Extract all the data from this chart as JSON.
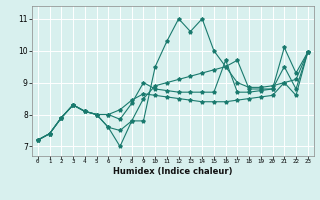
{
  "title": "",
  "xlabel": "Humidex (Indice chaleur)",
  "xlim": [
    -0.5,
    23.5
  ],
  "ylim": [
    6.7,
    11.4
  ],
  "xticks": [
    0,
    1,
    2,
    3,
    4,
    5,
    6,
    7,
    8,
    9,
    10,
    11,
    12,
    13,
    14,
    15,
    16,
    17,
    18,
    19,
    20,
    21,
    22,
    23
  ],
  "yticks": [
    7,
    8,
    9,
    10,
    11
  ],
  "bg_color": "#d8f0ee",
  "line_color": "#1a7a6e",
  "grid_color": "#ffffff",
  "series": [
    [
      7.2,
      7.4,
      7.9,
      8.3,
      8.1,
      8.0,
      7.6,
      7.0,
      7.8,
      7.8,
      9.5,
      10.3,
      11.0,
      10.6,
      11.0,
      10.0,
      9.5,
      9.7,
      8.8,
      8.8,
      8.8,
      10.1,
      9.3,
      9.95
    ],
    [
      7.2,
      7.4,
      7.9,
      8.3,
      8.1,
      8.0,
      7.6,
      7.5,
      7.8,
      8.5,
      8.9,
      9.0,
      9.1,
      9.2,
      9.3,
      9.4,
      9.5,
      9.0,
      8.85,
      8.85,
      8.9,
      9.0,
      9.1,
      9.95
    ],
    [
      7.2,
      7.4,
      7.9,
      8.3,
      8.1,
      8.0,
      8.0,
      7.85,
      8.35,
      9.0,
      8.8,
      8.75,
      8.7,
      8.7,
      8.7,
      8.7,
      9.7,
      8.7,
      8.7,
      8.75,
      8.8,
      9.5,
      8.8,
      9.95
    ],
    [
      7.2,
      7.4,
      7.9,
      8.3,
      8.1,
      8.0,
      8.0,
      8.15,
      8.45,
      8.65,
      8.6,
      8.55,
      8.5,
      8.45,
      8.4,
      8.4,
      8.4,
      8.45,
      8.5,
      8.55,
      8.6,
      9.0,
      8.6,
      9.95
    ]
  ]
}
